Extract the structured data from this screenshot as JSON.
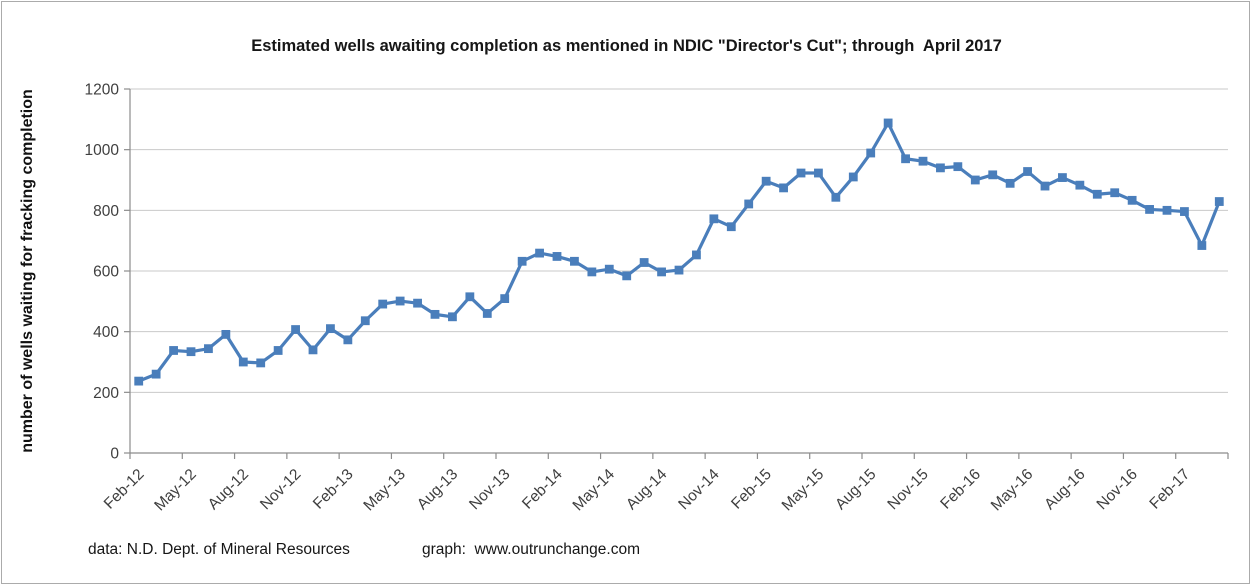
{
  "title": "Estimated wells awaiting completion as mentioned in NDIC \"Director's Cut\"; through  April 2017",
  "footer": {
    "data_source": "data: N.D. Dept. of Mineral Resources",
    "graph_credit": "graph:  www.outrunchange.com"
  },
  "colors": {
    "series": "#4A7EBB",
    "gridline": "#c9c9c9",
    "axis": "#8c8c8c",
    "tick_text": "#3f3f3f",
    "border": "#ababab"
  },
  "chart_data": {
    "type": "line",
    "title": "Estimated wells awaiting completion as mentioned in NDIC \"Director's Cut\"; through  April 2017",
    "xlabel": "",
    "ylabel": "number of wells waiting for fracking completion",
    "ylim": [
      0,
      1200
    ],
    "ytick_interval": 200,
    "ytick_labels": [
      "0",
      "200",
      "400",
      "600",
      "800",
      "1000",
      "1200"
    ],
    "xtick_label_interval": 3,
    "grid": true,
    "legend": "none",
    "marker": "square",
    "x": [
      "Feb-12",
      "Mar-12",
      "Apr-12",
      "May-12",
      "Jun-12",
      "Jul-12",
      "Aug-12",
      "Sep-12",
      "Oct-12",
      "Nov-12",
      "Dec-12",
      "Jan-13",
      "Feb-13",
      "Mar-13",
      "Apr-13",
      "May-13",
      "Jun-13",
      "Jul-13",
      "Aug-13",
      "Sep-13",
      "Oct-13",
      "Nov-13",
      "Dec-13",
      "Jan-14",
      "Feb-14",
      "Mar-14",
      "Apr-14",
      "May-14",
      "Jun-14",
      "Jul-14",
      "Aug-14",
      "Sep-14",
      "Oct-14",
      "Nov-14",
      "Dec-14",
      "Jan-15",
      "Feb-15",
      "Mar-15",
      "Apr-15",
      "May-15",
      "Jun-15",
      "Jul-15",
      "Aug-15",
      "Sep-15",
      "Oct-15",
      "Nov-15",
      "Dec-15",
      "Jan-16",
      "Feb-16",
      "Mar-16",
      "Apr-16",
      "May-16",
      "Jun-16",
      "Jul-16",
      "Aug-16",
      "Sep-16",
      "Oct-16",
      "Nov-16",
      "Dec-16",
      "Jan-17",
      "Feb-17",
      "Mar-17",
      "Apr-17"
    ],
    "values": [
      237,
      260,
      338,
      334,
      344,
      391,
      300,
      297,
      338,
      407,
      340,
      410,
      373,
      436,
      491,
      501,
      494,
      457,
      449,
      515,
      460,
      509,
      632,
      659,
      648,
      632,
      597,
      606,
      584,
      628,
      597,
      603,
      653,
      772,
      746,
      821,
      896,
      874,
      923,
      923,
      843,
      910,
      989,
      1088,
      970,
      962,
      940,
      944,
      900,
      917,
      889,
      928,
      880,
      908,
      883,
      853,
      858,
      833,
      803,
      800,
      796,
      684,
      829
    ]
  }
}
